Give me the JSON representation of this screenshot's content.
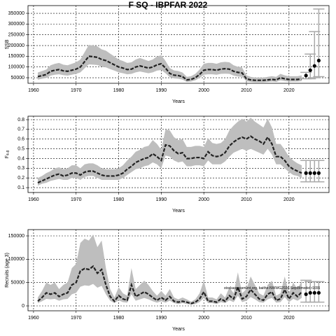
{
  "chart_data": [
    {
      "type": "line",
      "title": "F SQ - IBPFAR 2022",
      "ylabel": "SSB",
      "xlabel": "Years",
      "x": [
        1961,
        1962,
        1963,
        1964,
        1965,
        1966,
        1967,
        1968,
        1969,
        1970,
        1971,
        1972,
        1973,
        1974,
        1975,
        1976,
        1977,
        1978,
        1979,
        1980,
        1981,
        1982,
        1983,
        1984,
        1985,
        1986,
        1987,
        1988,
        1989,
        1990,
        1991,
        1992,
        1993,
        1994,
        1995,
        1996,
        1997,
        1998,
        1999,
        2000,
        2001,
        2002,
        2003,
        2004,
        2005,
        2006,
        2007,
        2008,
        2009,
        2010,
        2011,
        2012,
        2013,
        2014,
        2015,
        2016,
        2017,
        2018,
        2019,
        2020,
        2021,
        2022,
        2023
      ],
      "values": [
        55000,
        60000,
        65000,
        80000,
        85000,
        88000,
        82000,
        80000,
        85000,
        90000,
        100000,
        125000,
        150000,
        148000,
        145000,
        135000,
        130000,
        120000,
        110000,
        100000,
        95000,
        88000,
        90000,
        100000,
        105000,
        100000,
        95000,
        100000,
        110000,
        115000,
        95000,
        70000,
        62000,
        60000,
        55000,
        40000,
        42000,
        50000,
        65000,
        85000,
        88000,
        88000,
        85000,
        90000,
        92000,
        90000,
        80000,
        75000,
        72000,
        45000,
        40000,
        38000,
        38000,
        38000,
        40000,
        42000,
        40000,
        50000,
        45000,
        42000,
        42000,
        42000,
        45000
      ],
      "lower": [
        41000,
        45000,
        49000,
        60000,
        64000,
        66000,
        62000,
        60000,
        64000,
        68000,
        75000,
        94000,
        112000,
        111000,
        109000,
        101000,
        98000,
        90000,
        83000,
        75000,
        71000,
        66000,
        68000,
        75000,
        79000,
        75000,
        71000,
        75000,
        83000,
        86000,
        71000,
        53000,
        47000,
        45000,
        41000,
        30000,
        32000,
        38000,
        49000,
        64000,
        66000,
        66000,
        64000,
        68000,
        69000,
        68000,
        60000,
        56000,
        54000,
        34000,
        30000,
        29000,
        29000,
        29000,
        30000,
        32000,
        30000,
        38000,
        34000,
        32000,
        32000,
        32000,
        34000
      ],
      "upper": [
        74000,
        81000,
        88000,
        108000,
        115000,
        119000,
        111000,
        108000,
        115000,
        122000,
        135000,
        169000,
        203000,
        200000,
        196000,
        182000,
        176000,
        162000,
        149000,
        135000,
        128000,
        119000,
        122000,
        135000,
        142000,
        135000,
        128000,
        135000,
        149000,
        155000,
        128000,
        95000,
        84000,
        81000,
        74000,
        54000,
        57000,
        68000,
        88000,
        115000,
        119000,
        119000,
        115000,
        122000,
        124000,
        122000,
        108000,
        101000,
        97000,
        61000,
        54000,
        51000,
        51000,
        51000,
        54000,
        57000,
        54000,
        68000,
        61000,
        57000,
        57000,
        57000,
        61000
      ],
      "color": "#222222",
      "band_color": "#bebebe",
      "forecast": {
        "x": [
          2024,
          2025,
          2026,
          2027
        ],
        "values": [
          60000,
          85000,
          105000,
          130000
        ],
        "lower": [
          45000,
          45000,
          50000,
          55000
        ],
        "upper": [
          75000,
          160000,
          265000,
          370000
        ],
        "color": "#000000",
        "bar_color": "#aaaaaa"
      },
      "xlim": [
        1958.7,
        2029.4
      ],
      "ylim": [
        24000,
        386000
      ],
      "xticks": [
        1960,
        1970,
        1980,
        1990,
        2000,
        2010,
        2020
      ],
      "yticks": [
        50000,
        100000,
        150000,
        200000,
        250000,
        300000,
        350000
      ],
      "grid": true
    },
    {
      "type": "line",
      "ylabel": "F",
      "ylabel_sub": "4-8",
      "xlabel": "Years",
      "x": [
        1961,
        1962,
        1963,
        1964,
        1965,
        1966,
        1967,
        1968,
        1969,
        1970,
        1971,
        1972,
        1973,
        1974,
        1975,
        1976,
        1977,
        1978,
        1979,
        1980,
        1981,
        1982,
        1983,
        1984,
        1985,
        1986,
        1987,
        1988,
        1989,
        1990,
        1991,
        1992,
        1993,
        1994,
        1995,
        1996,
        1997,
        1998,
        1999,
        2000,
        2001,
        2002,
        2003,
        2004,
        2005,
        2006,
        2007,
        2008,
        2009,
        2010,
        2011,
        2012,
        2013,
        2014,
        2015,
        2016,
        2017,
        2018,
        2019,
        2020,
        2021,
        2022,
        2023
      ],
      "values": [
        0.15,
        0.17,
        0.19,
        0.21,
        0.23,
        0.24,
        0.22,
        0.23,
        0.25,
        0.25,
        0.23,
        0.26,
        0.27,
        0.27,
        0.25,
        0.23,
        0.22,
        0.22,
        0.22,
        0.23,
        0.25,
        0.29,
        0.32,
        0.36,
        0.38,
        0.4,
        0.41,
        0.45,
        0.42,
        0.38,
        0.54,
        0.53,
        0.48,
        0.45,
        0.46,
        0.4,
        0.4,
        0.41,
        0.41,
        0.4,
        0.47,
        0.43,
        0.42,
        0.43,
        0.46,
        0.53,
        0.57,
        0.6,
        0.62,
        0.6,
        0.63,
        0.6,
        0.58,
        0.55,
        0.62,
        0.55,
        0.42,
        0.42,
        0.38,
        0.32,
        0.29,
        0.27,
        0.25
      ],
      "lower": [
        0.12,
        0.14,
        0.15,
        0.17,
        0.18,
        0.19,
        0.18,
        0.18,
        0.2,
        0.2,
        0.18,
        0.21,
        0.22,
        0.22,
        0.2,
        0.18,
        0.18,
        0.18,
        0.18,
        0.18,
        0.2,
        0.23,
        0.26,
        0.29,
        0.3,
        0.32,
        0.33,
        0.36,
        0.34,
        0.3,
        0.43,
        0.42,
        0.38,
        0.36,
        0.37,
        0.32,
        0.32,
        0.33,
        0.33,
        0.32,
        0.38,
        0.34,
        0.34,
        0.34,
        0.37,
        0.42,
        0.46,
        0.48,
        0.5,
        0.48,
        0.5,
        0.48,
        0.46,
        0.44,
        0.5,
        0.44,
        0.34,
        0.34,
        0.3,
        0.26,
        0.23,
        0.22,
        0.2
      ],
      "upper": [
        0.2,
        0.22,
        0.25,
        0.27,
        0.3,
        0.31,
        0.29,
        0.3,
        0.33,
        0.33,
        0.3,
        0.34,
        0.35,
        0.35,
        0.33,
        0.3,
        0.29,
        0.29,
        0.29,
        0.3,
        0.33,
        0.38,
        0.42,
        0.47,
        0.49,
        0.52,
        0.53,
        0.59,
        0.55,
        0.49,
        0.7,
        0.69,
        0.62,
        0.59,
        0.6,
        0.52,
        0.52,
        0.53,
        0.53,
        0.52,
        0.61,
        0.56,
        0.55,
        0.56,
        0.6,
        0.69,
        0.74,
        0.78,
        0.81,
        0.78,
        0.82,
        0.78,
        0.75,
        0.72,
        0.81,
        0.72,
        0.55,
        0.55,
        0.49,
        0.42,
        0.38,
        0.35,
        0.33
      ],
      "color": "#222222",
      "band_color": "#bebebe",
      "forecast": {
        "x": [
          2024,
          2025,
          2026,
          2027
        ],
        "values": [
          0.25,
          0.25,
          0.25,
          0.25
        ],
        "lower": [
          0.16,
          0.16,
          0.16,
          0.16
        ],
        "upper": [
          0.38,
          0.38,
          0.38,
          0.38
        ],
        "color": "#000000",
        "bar_color": "#aaaaaa"
      },
      "xlim": [
        1958.7,
        2029.4
      ],
      "ylim": [
        0.05,
        0.836
      ],
      "xticks": [
        1960,
        1970,
        1980,
        1990,
        2000,
        2010,
        2020
      ],
      "yticks": [
        0.1,
        0.2,
        0.3,
        0.4,
        0.5,
        0.6,
        0.7,
        0.8
      ],
      "grid": true
    },
    {
      "type": "line",
      "ylabel": "Recruits (age 3)",
      "xlabel": "Years",
      "annotation": "stockassessment.org, baithe-NWWG2024-SeptBimodel r1655",
      "x": [
        1961,
        1962,
        1963,
        1964,
        1965,
        1966,
        1967,
        1968,
        1969,
        1970,
        1971,
        1972,
        1973,
        1974,
        1975,
        1976,
        1977,
        1978,
        1979,
        1980,
        1981,
        1982,
        1983,
        1984,
        1985,
        1986,
        1987,
        1988,
        1989,
        1990,
        1991,
        1992,
        1993,
        1994,
        1995,
        1996,
        1997,
        1998,
        1999,
        2000,
        2001,
        2002,
        2003,
        2004,
        2005,
        2006,
        2007,
        2008,
        2009,
        2010,
        2011,
        2012,
        2013,
        2014,
        2015,
        2016,
        2017,
        2018,
        2019,
        2020,
        2021,
        2022,
        2023
      ],
      "values": [
        10000,
        18000,
        28000,
        25000,
        28000,
        20000,
        25000,
        28000,
        45000,
        50000,
        75000,
        80000,
        78000,
        85000,
        70000,
        78000,
        45000,
        20000,
        10000,
        22000,
        15000,
        12000,
        45000,
        20000,
        25000,
        30000,
        25000,
        18000,
        12000,
        18000,
        12000,
        20000,
        10000,
        8000,
        10000,
        8000,
        5000,
        8000,
        15000,
        30000,
        10000,
        10000,
        8000,
        15000,
        10000,
        22000,
        15000,
        40000,
        15000,
        20000,
        35000,
        25000,
        15000,
        12000,
        25000,
        30000,
        12000,
        15000,
        35000,
        15000,
        28000,
        20000,
        30000
      ],
      "lower": [
        6000,
        10000,
        15000,
        14000,
        15000,
        11000,
        14000,
        15000,
        25000,
        28000,
        41000,
        44000,
        43000,
        47000,
        39000,
        43000,
        25000,
        11000,
        6000,
        12000,
        8000,
        7000,
        25000,
        11000,
        14000,
        17000,
        14000,
        10000,
        7000,
        10000,
        7000,
        11000,
        6000,
        4000,
        6000,
        4000,
        3000,
        4000,
        8000,
        17000,
        6000,
        6000,
        4000,
        8000,
        6000,
        12000,
        8000,
        22000,
        8000,
        11000,
        19000,
        14000,
        8000,
        7000,
        14000,
        17000,
        7000,
        8000,
        19000,
        8000,
        15000,
        11000,
        17000
      ],
      "upper": [
        18000,
        32000,
        50000,
        45000,
        50000,
        36000,
        45000,
        50000,
        81000,
        90000,
        135000,
        144000,
        140000,
        153000,
        126000,
        140000,
        81000,
        36000,
        18000,
        40000,
        27000,
        22000,
        81000,
        36000,
        45000,
        54000,
        45000,
        32000,
        22000,
        32000,
        22000,
        36000,
        18000,
        14000,
        18000,
        14000,
        9000,
        14000,
        27000,
        54000,
        18000,
        18000,
        14000,
        27000,
        18000,
        40000,
        27000,
        72000,
        27000,
        36000,
        63000,
        45000,
        27000,
        22000,
        45000,
        54000,
        22000,
        27000,
        63000,
        27000,
        50000,
        36000,
        54000
      ],
      "color": "#222222",
      "band_color": "#bebebe",
      "forecast": {
        "x": [
          2024,
          2025,
          2026,
          2027
        ],
        "values": [
          25000,
          28000,
          28000,
          28000
        ],
        "lower": [
          8000,
          8000,
          8000,
          8000
        ],
        "upper": [
          55000,
          52000,
          52000,
          52000
        ],
        "color": "#000000",
        "bar_color": "#aaaaaa"
      },
      "xlim": [
        1958.7,
        2029.4
      ],
      "ylim": [
        -10500,
        163500
      ],
      "xticks": [
        1960,
        1970,
        1980,
        1990,
        2000,
        2010,
        2020
      ],
      "yticks": [
        0,
        50000,
        100000,
        150000
      ],
      "grid": true
    }
  ]
}
